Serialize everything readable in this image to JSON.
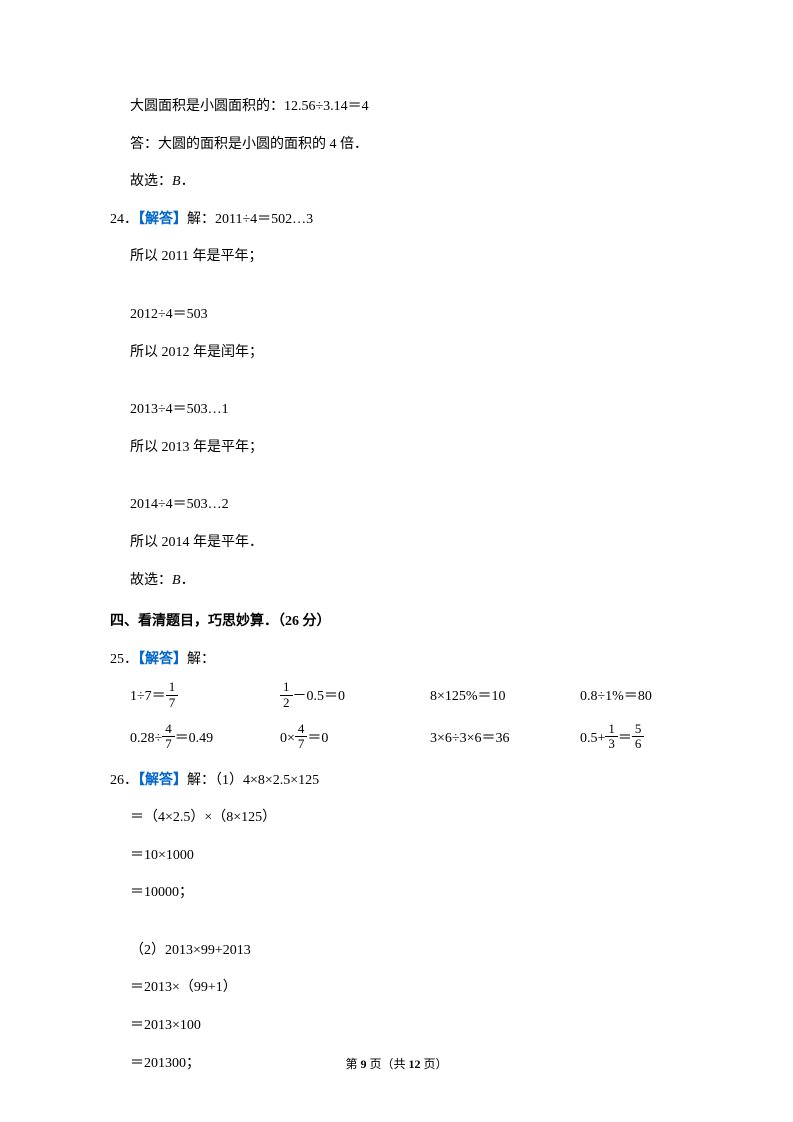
{
  "intro": {
    "line1_pre": "大圆面积是小圆面积的：",
    "line1_eq": "12.56÷3.14＝4",
    "line2": "答：大圆的面积是小圆的面积的 4 倍．",
    "line3_pre": "故选：",
    "line3_choice": "B"
  },
  "q24": {
    "num": "24",
    "tag": "【解答】",
    "intro": "解：2011÷4＝502…3",
    "l1": "所以 2011 年是平年；",
    "l2": "2012÷4＝503",
    "l3": "所以 2012 年是闰年；",
    "l4": "2013÷4＝503…1",
    "l5": "所以 2013 年是平年；",
    "l6": "2014÷4＝503…2",
    "l7": "所以 2014 年是平年．",
    "l8_pre": "故选：",
    "l8_choice": "B"
  },
  "section4": {
    "header": "四、看清题目，巧思妙算．（26 分）"
  },
  "q25": {
    "num": "25",
    "tag": "【解答】",
    "intro": "解：",
    "row1": {
      "c1_pre": "1÷7＝",
      "c1_frac_num": "1",
      "c1_frac_den": "7",
      "c2_frac_num": "1",
      "c2_frac_den": "2",
      "c2_post": "－0.5＝0",
      "c3": "8×125%＝10",
      "c4": "0.8÷1%＝80"
    },
    "row2": {
      "c1_pre": "0.28÷",
      "c1_frac_num": "4",
      "c1_frac_den": "7",
      "c1_post": "＝0.49",
      "c2_pre": "0×",
      "c2_frac_num": "4",
      "c2_frac_den": "7",
      "c2_post": "＝0",
      "c3": "3×6÷3×6＝36",
      "c4_pre": "0.5+",
      "c4_frac1_num": "1",
      "c4_frac1_den": "3",
      "c4_mid": "＝",
      "c4_frac2_num": "5",
      "c4_frac2_den": "6"
    }
  },
  "q26": {
    "num": "26",
    "tag": "【解答】",
    "intro": "解：（1）4×8×2.5×125",
    "l1": "＝（4×2.5）×（8×125）",
    "l2": "＝10×1000",
    "l3": "＝10000；",
    "l4": "（2）2013×99+2013",
    "l5": "＝2013×（99+1）",
    "l6": "＝2013×100",
    "l7": "＝201300；"
  },
  "footer": {
    "pre": "第 ",
    "page": "9",
    "mid": " 页（共 ",
    "total": "12",
    "post": " 页）"
  },
  "colors": {
    "answer_tag": "#0066cc",
    "text": "#000000",
    "background": "#ffffff"
  }
}
